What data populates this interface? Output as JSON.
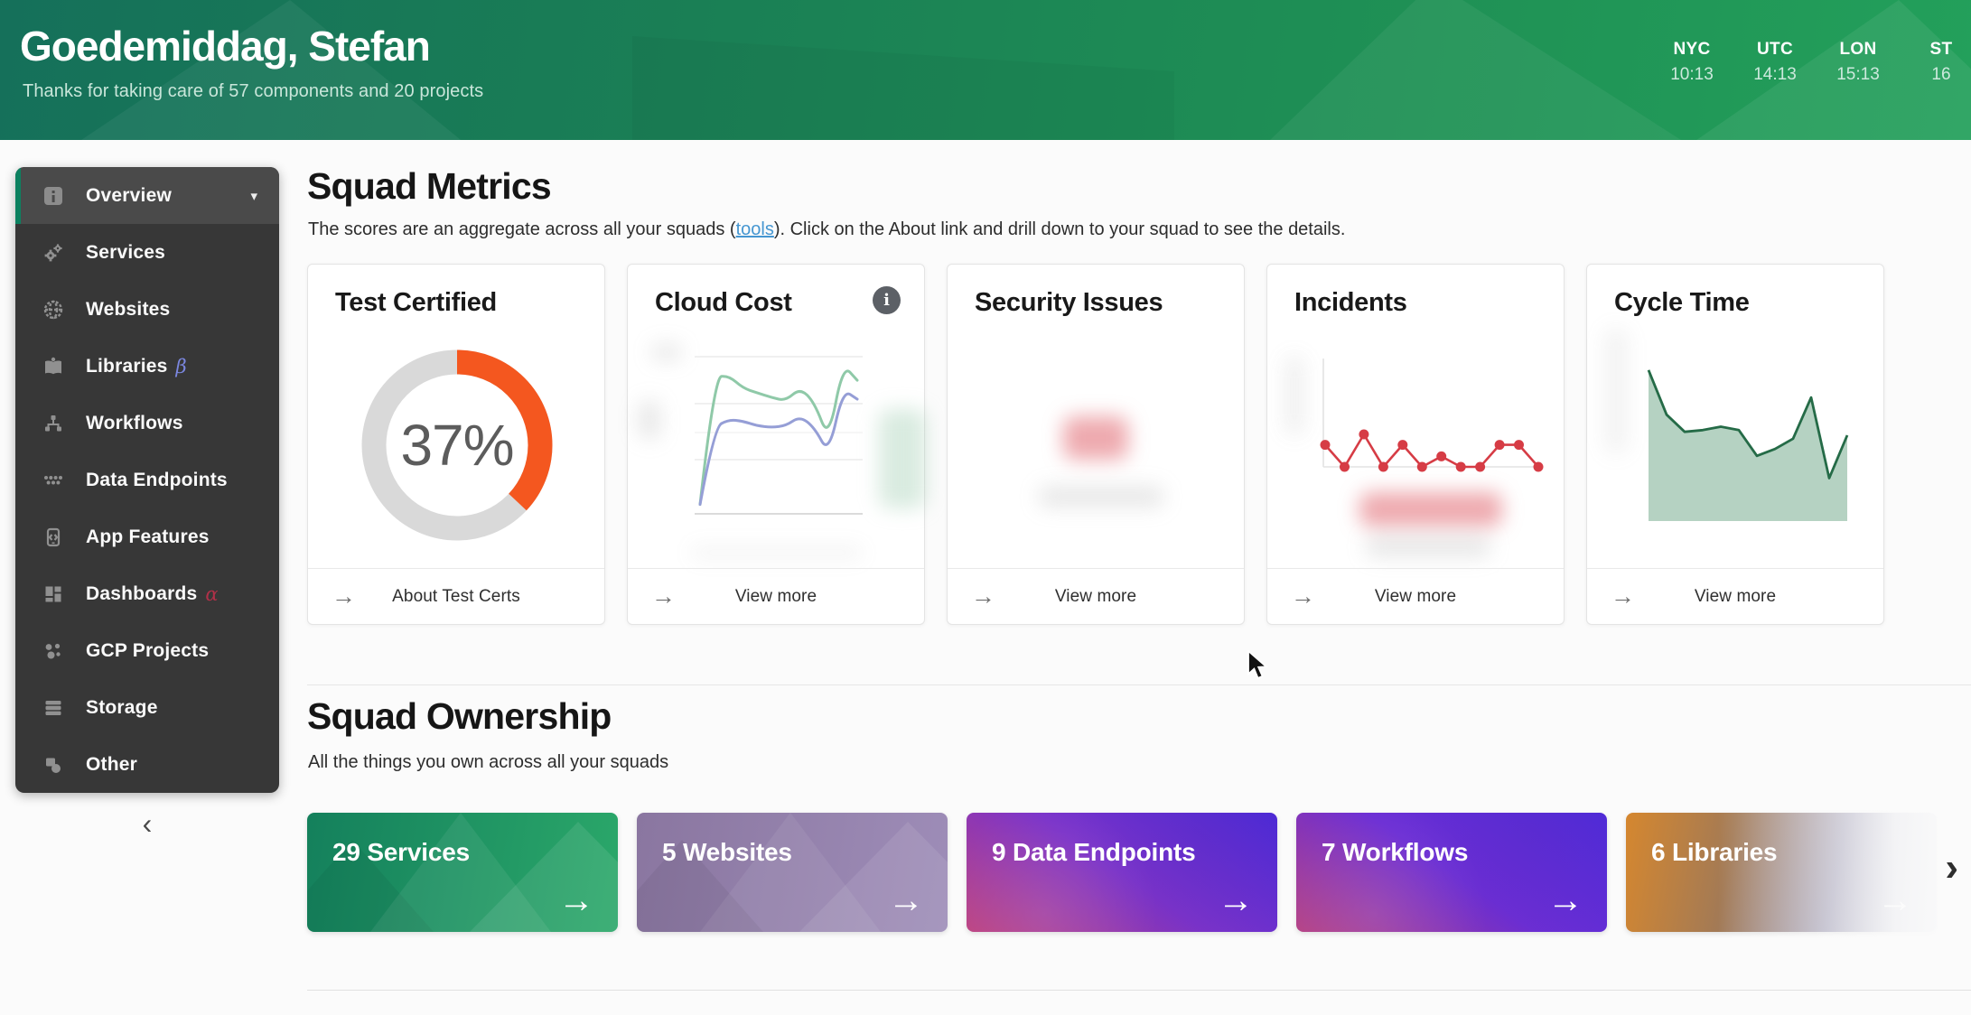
{
  "header": {
    "title": "Goedemiddag, Stefan",
    "subtitle": "Thanks for taking care of 57 components and 20 projects",
    "timezones": [
      {
        "label": "NYC",
        "time": "10:13"
      },
      {
        "label": "UTC",
        "time": "14:13"
      },
      {
        "label": "LON",
        "time": "15:13"
      },
      {
        "label": "ST",
        "time": "16"
      }
    ]
  },
  "sidebar": {
    "items": [
      {
        "label": "Overview",
        "icon": "info-icon",
        "active": true,
        "caret": "▾"
      },
      {
        "label": "Services",
        "icon": "gears-icon"
      },
      {
        "label": "Websites",
        "icon": "globe-icon"
      },
      {
        "label": "Libraries",
        "icon": "book-icon",
        "badge": "β"
      },
      {
        "label": "Workflows",
        "icon": "workflow-icon"
      },
      {
        "label": "Data Endpoints",
        "icon": "endpoints-icon"
      },
      {
        "label": "App Features",
        "icon": "app-features-icon"
      },
      {
        "label": "Dashboards",
        "icon": "dashboards-icon",
        "badge": "α"
      },
      {
        "label": "GCP Projects",
        "icon": "gcp-icon"
      },
      {
        "label": "Storage",
        "icon": "storage-icon"
      },
      {
        "label": "Other",
        "icon": "other-icon"
      }
    ],
    "collapse_icon": "‹"
  },
  "squad_metrics": {
    "title": "Squad Metrics",
    "description_before": "The scores are an aggregate across all your squads (",
    "link_text": "tools",
    "description_after": "). Click on the About link and drill down to your squad to see the details.",
    "cards": [
      {
        "title": "Test Certified",
        "footer": "About Test Certs"
      },
      {
        "title": "Cloud Cost",
        "footer": "View more",
        "info_icon": "i"
      },
      {
        "title": "Security Issues",
        "footer": "View more"
      },
      {
        "title": "Incidents",
        "footer": "View more"
      },
      {
        "title": "Cycle Time",
        "footer": "View more"
      }
    ]
  },
  "chart_data": [
    {
      "type": "donut",
      "title": "Test Certified",
      "value_pct": 37,
      "label": "37%",
      "arc_color": "#f4571f",
      "track_color": "#d9d9d9"
    },
    {
      "type": "line",
      "title": "Cloud Cost",
      "smooth": true,
      "grid": true,
      "ylim": [
        0,
        100
      ],
      "redacted_axis_labels": true,
      "series": [
        {
          "name": "upper-line",
          "color": "#8fc9a8",
          "values": [
            6,
            87,
            88,
            80,
            77,
            74,
            72,
            80,
            71,
            47,
            95,
            85
          ]
        },
        {
          "name": "lower-line",
          "color": "#959ed6",
          "values": [
            6,
            55,
            60,
            59,
            56,
            55,
            56,
            62,
            55,
            38,
            79,
            73
          ]
        }
      ]
    },
    {
      "type": "none",
      "title": "Security Issues",
      "redacted": true
    },
    {
      "type": "line",
      "title": "Incidents",
      "smooth": false,
      "markers": true,
      "ylim": [
        0,
        100
      ],
      "unit": "relative-height",
      "redacted_caption": true,
      "series": [
        {
          "name": "incidents",
          "color": "#d63c45",
          "values": [
            21,
            0,
            31,
            0,
            21,
            0,
            10,
            0,
            0,
            21,
            21,
            0
          ]
        }
      ]
    },
    {
      "type": "area",
      "title": "Cycle Time",
      "smooth": false,
      "ylim": [
        0,
        100
      ],
      "unit": "relative-height",
      "series": [
        {
          "name": "cycle-time",
          "color": "#256b47",
          "fill": "#b5d2c2",
          "values": [
            88,
            62,
            52,
            53,
            55,
            53,
            38,
            42,
            48,
            72,
            25,
            50
          ]
        }
      ]
    }
  ],
  "squad_ownership": {
    "title": "Squad Ownership",
    "description": "All the things you own across all your squads",
    "cards": [
      {
        "label": "29 Services",
        "arrow": "→",
        "gradient": [
          "#14805c",
          "#2ba86a"
        ]
      },
      {
        "label": "5 Websites",
        "arrow": "→",
        "gradient": [
          "#8a76a0",
          "#9e8db8"
        ]
      },
      {
        "label": "9 Data Endpoints",
        "arrow": "→",
        "gradient": [
          "#bc4180",
          "#7b33c9",
          "#4b2ad7"
        ]
      },
      {
        "label": "7 Workflows",
        "arrow": "→",
        "gradient": [
          "#b43f83",
          "#6c2ed4",
          "#4e2bd9"
        ]
      },
      {
        "label": "6 Libraries",
        "arrow": "→",
        "gradient": [
          "#d5872f",
          "#a37a55",
          "#8e8aa6",
          "#c4c9da"
        ]
      }
    ],
    "next_icon": "›"
  }
}
